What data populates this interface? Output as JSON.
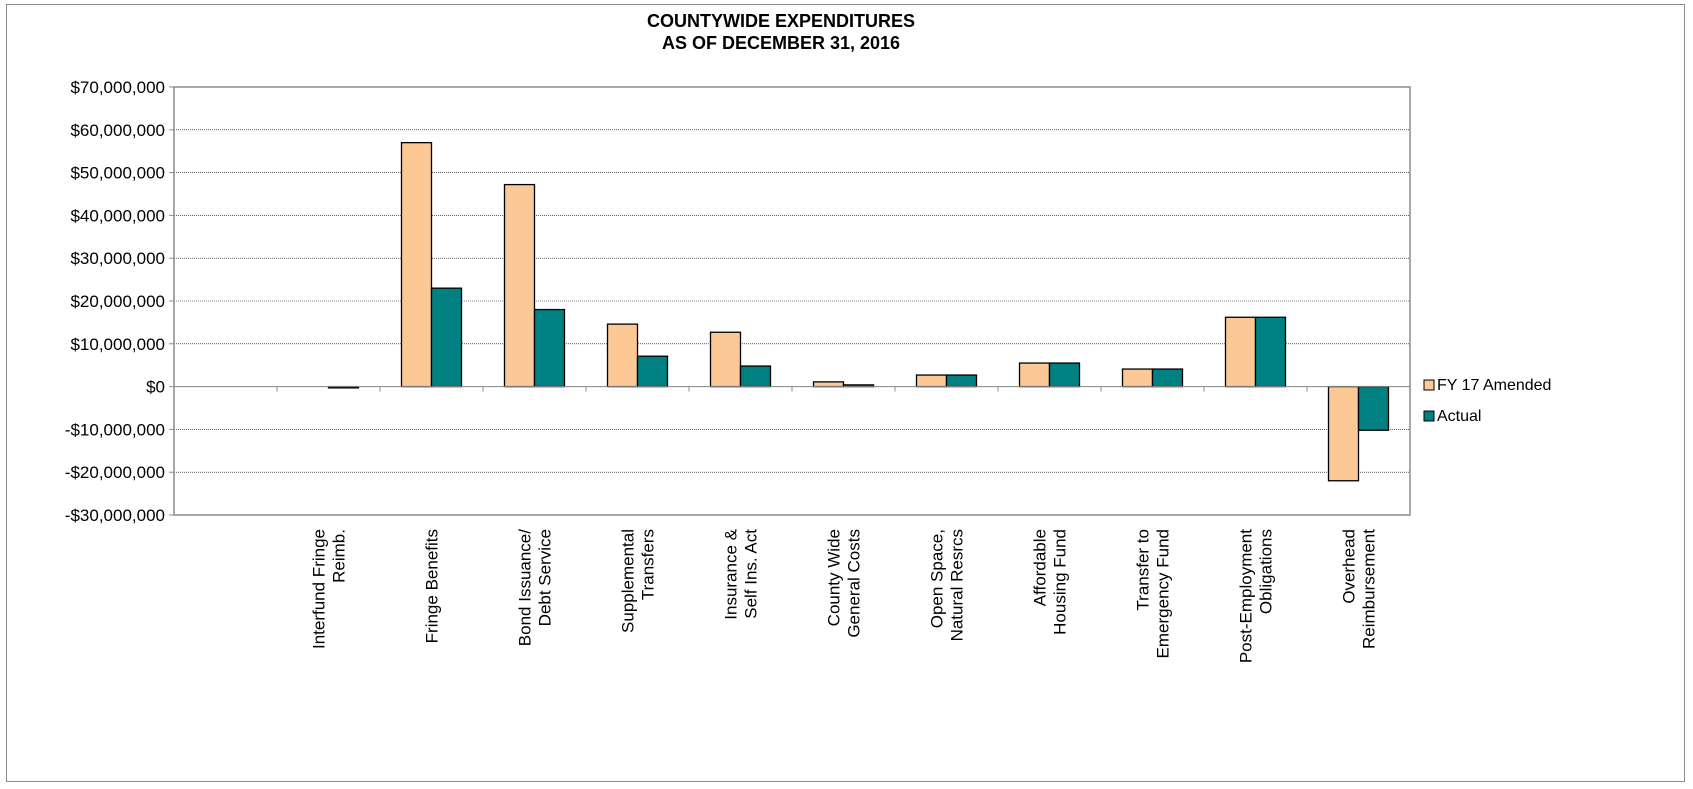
{
  "chart_data": {
    "type": "bar",
    "title": [
      "COUNTYWIDE EXPENDITURES",
      "AS OF DECEMBER 31, 2016"
    ],
    "xlabel": "",
    "ylabel": "",
    "ylim": [
      -30000000,
      70000000
    ],
    "yticks": [
      70000000,
      60000000,
      50000000,
      40000000,
      30000000,
      20000000,
      10000000,
      0,
      -10000000,
      -20000000,
      -30000000
    ],
    "ytick_labels": [
      "$70,000,000",
      "$60,000,000",
      "$50,000,000",
      "$40,000,000",
      "$30,000,000",
      "$20,000,000",
      "$10,000,000",
      "$0",
      "-$10,000,000",
      "-$20,000,000",
      "-$30,000,000"
    ],
    "grid": true,
    "legend_position": "right",
    "categories": [
      "",
      [
        "Interfund Fringe",
        "Reimb."
      ],
      [
        "Fringe Benefits"
      ],
      [
        "Bond Issuance/",
        "Debt Service"
      ],
      [
        "Supplemental",
        "Transfers"
      ],
      [
        "Insurance &",
        "Self Ins. Act"
      ],
      [
        "County Wide",
        "General Costs"
      ],
      [
        "Open Space,",
        "Natural Resrcs"
      ],
      [
        "Affordable",
        "Housing Fund"
      ],
      [
        "Transfer to",
        "Emergency Fund"
      ],
      [
        "Post-Employment",
        "Obligations"
      ],
      [
        "Overhead",
        "Reimbursement"
      ]
    ],
    "series": [
      {
        "name": "FY 17 Amended",
        "color": "#FCC896",
        "values": [
          0,
          0,
          57000000,
          47200000,
          14600000,
          12700000,
          1100000,
          2700000,
          5500000,
          4100000,
          16200000,
          -22000000
        ]
      },
      {
        "name": "Actual",
        "color": "#008080",
        "values": [
          0,
          -300000,
          23000000,
          18000000,
          7100000,
          4800000,
          400000,
          2700000,
          5500000,
          4100000,
          16200000,
          -10200000
        ]
      }
    ]
  }
}
